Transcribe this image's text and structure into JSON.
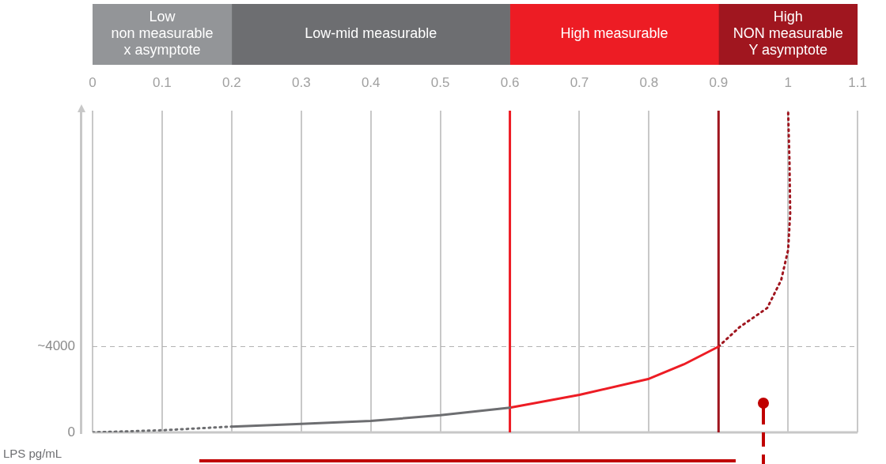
{
  "chart_data": [
    {
      "type": "bar",
      "orientation": "horizontal",
      "stacked": true,
      "categories": [
        null
      ],
      "xlim": [
        0,
        1.1
      ],
      "xticks": [
        0,
        0.1,
        0.2,
        0.3,
        0.4,
        0.5,
        0.6,
        0.7,
        0.8,
        0.9,
        1,
        1.1
      ],
      "tick_labels": false,
      "series": [
        {
          "name": "Low\nnon measurable\nx asymptote",
          "color": "#939598",
          "values": [
            0.2
          ]
        },
        {
          "name": "Low-mid measurable",
          "color": "#6d6e71",
          "values": [
            0.4
          ]
        },
        {
          "name": "High measurable",
          "color": "#ed1c24",
          "values": [
            0.3
          ]
        },
        {
          "name": "High\nNON measurable\nY asymptote",
          "color": "#a0161f",
          "values": [
            0.2
          ]
        }
      ]
    },
    {
      "type": "line",
      "ylabel": "LPS pg/mL",
      "xlim": [
        0,
        1.1
      ],
      "xticks": [
        0,
        0.1,
        0.2,
        0.3,
        0.4,
        0.5,
        0.6,
        0.7,
        0.8,
        0.9,
        1,
        1.1
      ],
      "ylim": [
        0,
        15000
      ],
      "yticks": [
        0,
        {
          "value": 4000,
          "label": "~4000"
        }
      ],
      "grid": "x",
      "marker": "none",
      "series": [
        {
          "color": "#6d6e71",
          "line_style": "dotted",
          "x": [
            0,
            0.1,
            0.2
          ],
          "values": [
            0,
            100,
            270
          ]
        },
        {
          "color": "#6d6e71",
          "line_style": "solid",
          "x": [
            0.2,
            0.3,
            0.4,
            0.5,
            0.6
          ],
          "values": [
            270,
            400,
            530,
            800,
            1150
          ]
        },
        {
          "color": "#ed1c24",
          "line_style": "solid",
          "x": [
            0.6,
            0.7,
            0.8,
            0.85,
            0.9
          ],
          "values": [
            1150,
            1750,
            2500,
            3170,
            4000
          ]
        },
        {
          "color": "#a0161f",
          "line_style": "dotted",
          "x": [
            0.9,
            0.93,
            0.97,
            0.99,
            1.0,
            1.003,
            1.002,
            1.0
          ],
          "values": [
            4000,
            4900,
            5800,
            7100,
            8500,
            10200,
            12600,
            15000
          ]
        }
      ],
      "ref_lines": [
        {
          "axis": "y",
          "value": 4000,
          "color": "#b0b0b0",
          "line_style": "dashed"
        },
        {
          "axis": "x",
          "value": 0.6,
          "color": "#ed1c24",
          "line_style": "solid"
        },
        {
          "axis": "x",
          "value": 0.9,
          "color": "#a0161f",
          "line_style": "solid"
        }
      ]
    }
  ]
}
